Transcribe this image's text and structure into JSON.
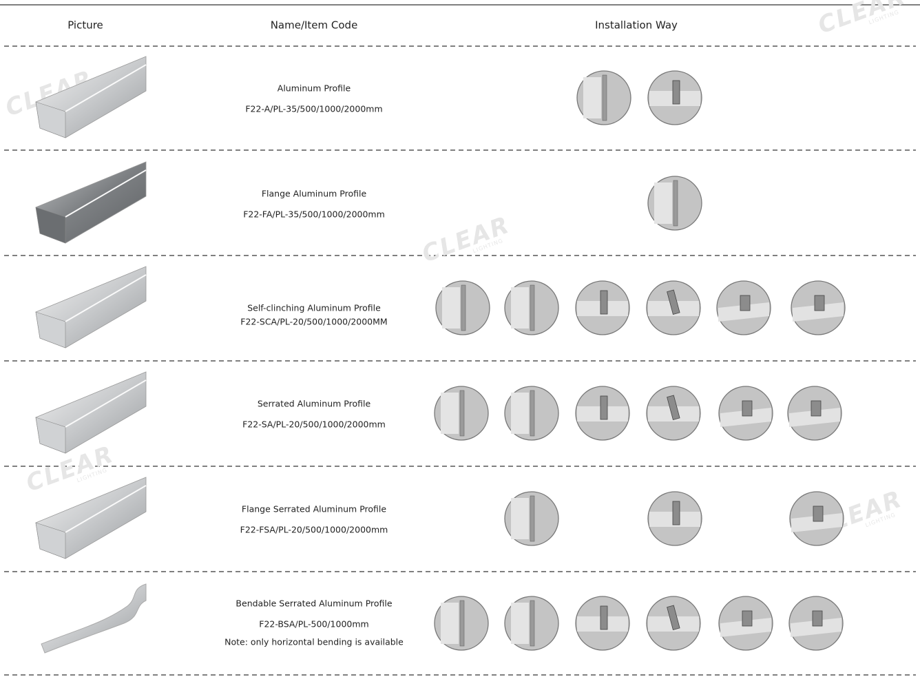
{
  "header": {
    "picture": "Picture",
    "name": "Name/Item Code",
    "installation": "Installation Way"
  },
  "watermark": {
    "brand": "CLEAR",
    "sub": "LIGHTING"
  },
  "table": {
    "rows": [
      {
        "name": "Aluminum Profile",
        "code": "F22-A/PL-35/500/1000/2000mm"
      },
      {
        "name": "Flange Aluminum Profile",
        "code": "F22-FA/PL-35/500/1000/2000mm"
      },
      {
        "name": "Self-clinching Aluminum Profile",
        "code": "F22-SCA/PL-20/500/1000/2000MM"
      },
      {
        "name": "Serrated Aluminum Profile",
        "code": "F22-SA/PL-20/500/1000/2000mm"
      },
      {
        "name": "Flange Serrated Aluminum Profile",
        "code": "F22-FSA/PL-20/500/1000/2000mm"
      },
      {
        "name": "Bendable Serrated Aluminum Profile",
        "code": "F22-BSA/PL-500/1000mm",
        "note": "Note: only horizontal bending is available"
      }
    ]
  }
}
